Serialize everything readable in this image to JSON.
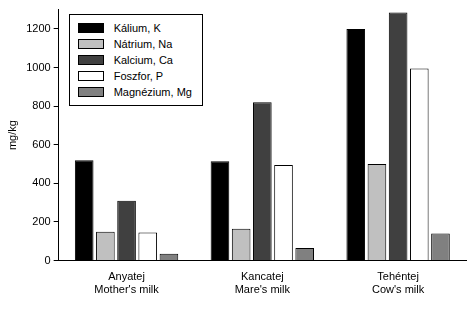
{
  "chart_data": {
    "type": "bar",
    "categories": [
      [
        "Anyatej",
        "Mother's milk"
      ],
      [
        "Kancatej",
        "Mare's milk"
      ],
      [
        "Tehéntej",
        "Cow's milk"
      ]
    ],
    "y_label": "mg/kg",
    "series": [
      {
        "name": "Kálium, K",
        "color": "#000000",
        "values": [
          520,
          515,
          1200
        ]
      },
      {
        "name": "Nátrium, Na",
        "color": "#c0c0c0",
        "values": [
          150,
          165,
          500
        ]
      },
      {
        "name": "Kalcium, Ca",
        "color": "#404040",
        "values": [
          310,
          820,
          1285
        ]
      },
      {
        "name": "Foszfor, P",
        "color": "#ffffff",
        "values": [
          145,
          495,
          995
        ]
      },
      {
        "name": "Magnézium, Mg",
        "color": "#808080",
        "values": [
          35,
          65,
          140
        ]
      }
    ],
    "ylim": [
      0,
      1300
    ],
    "yticks": [
      0,
      200,
      400,
      600,
      800,
      1000,
      1200
    ],
    "grid": false,
    "legend": "upper left"
  }
}
